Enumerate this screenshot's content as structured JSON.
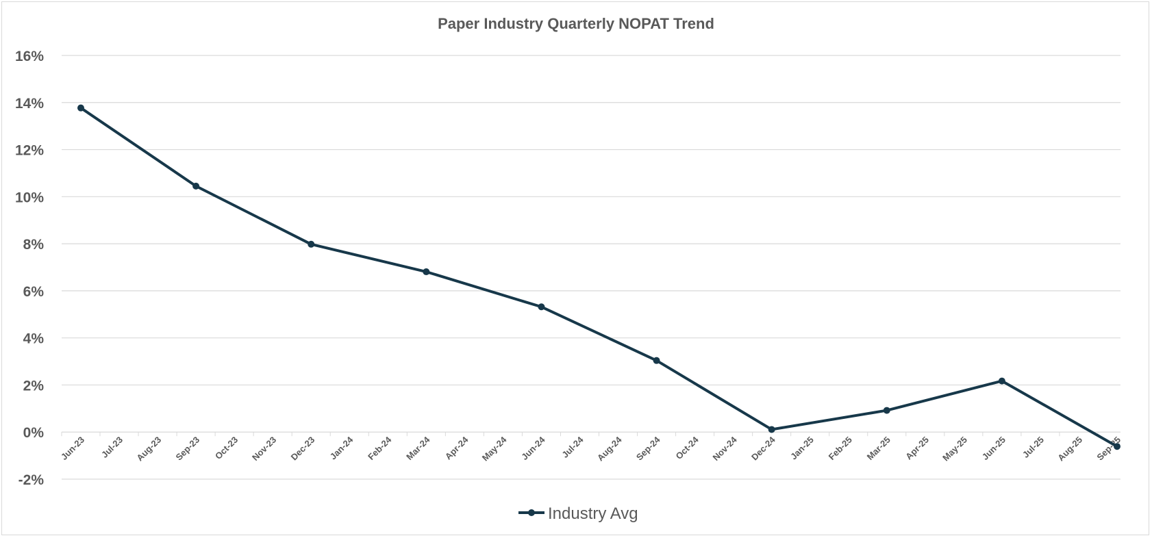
{
  "chart_data": {
    "type": "line",
    "title": "Paper Industry Quarterly NOPAT  Trend",
    "xlabel": "",
    "ylabel": "",
    "ylim": [
      -0.02,
      0.16
    ],
    "y_ticks": [
      "16%",
      "14%",
      "12%",
      "10%",
      "8%",
      "6%",
      "4%",
      "2%",
      "0%",
      "-2%"
    ],
    "y_tick_values": [
      0.16,
      0.14,
      0.12,
      0.1,
      0.08,
      0.06,
      0.04,
      0.02,
      0.0,
      -0.02
    ],
    "x_ticks": [
      "Jun-23",
      "Jul-23",
      "Aug-23",
      "Sep-23",
      "Oct-23",
      "Nov-23",
      "Dec-23",
      "Jan-24",
      "Feb-24",
      "Mar-24",
      "Apr-24",
      "May-24",
      "Jun-24",
      "Jul-24",
      "Aug-24",
      "Sep-24",
      "Oct-24",
      "Nov-24",
      "Dec-24",
      "Jan-25",
      "Feb-25",
      "Mar-25",
      "Apr-25",
      "May-25",
      "Jun-25",
      "Jul-25",
      "Aug-25",
      "Sep-25"
    ],
    "grid": true,
    "legend_position": "bottom",
    "series": [
      {
        "name": "Industry Avg",
        "color": "#17384a",
        "x": [
          "Jun-23",
          "Sep-23",
          "Dec-23",
          "Mar-24",
          "Jun-24",
          "Sep-24",
          "Dec-24",
          "Mar-25",
          "Jun-25",
          "Sep-25"
        ],
        "values": [
          0.1377,
          0.1045,
          0.0798,
          0.0681,
          0.0532,
          0.0304,
          0.0011,
          0.0092,
          0.0217,
          -0.0061
        ]
      }
    ]
  }
}
